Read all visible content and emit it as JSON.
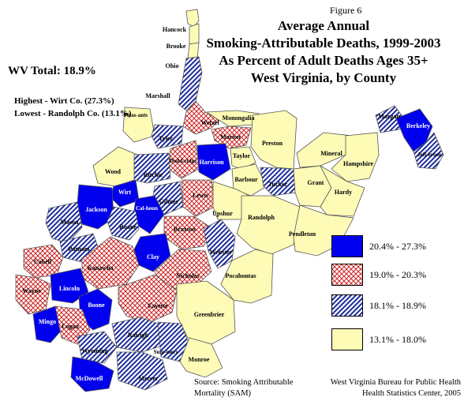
{
  "figure_label": "Figure 6",
  "title_lines": [
    "Average Annual",
    "Smoking-Attributable Deaths, 1999-2003",
    "As Percent of Adult Deaths Ages 35+",
    "West Virginia, by County"
  ],
  "wv_total": "WV Total:  18.9%",
  "highest": "Highest - Wirt Co. (27.3%)",
  "lowest": "Lowest - Randolph Co. (13.1%)",
  "source_lines": [
    "Source:  Smoking Attributable",
    "Mortality (SAM)"
  ],
  "bureau_lines": [
    "West Virginia Bureau for Public Health",
    "Health Statistics Center, 2005"
  ],
  "colors": {
    "high": "#0000ee",
    "mid_high": "#cc2222",
    "mid_low": "#1a2a9a",
    "low": "#fdfbb6",
    "border": "#555555"
  },
  "legend": [
    {
      "label": "20.4% - 27.3%",
      "class": "high"
    },
    {
      "label": "19.0% - 20.3%",
      "class": "mid_high"
    },
    {
      "label": "18.1% - 18.9%",
      "class": "mid_low"
    },
    {
      "label": "13.1% - 18.0%",
      "class": "low"
    }
  ],
  "counties": [
    {
      "name": "Hancock",
      "class": "low"
    },
    {
      "name": "Brooke",
      "class": "low"
    },
    {
      "name": "Ohio",
      "class": "low"
    },
    {
      "name": "Marshall",
      "class": "mid_low"
    },
    {
      "name": "Wetzel",
      "class": "mid_high"
    },
    {
      "name": "Monongalia",
      "class": "low"
    },
    {
      "name": "Marion",
      "class": "mid_high"
    },
    {
      "name": "Preston",
      "class": "low"
    },
    {
      "name": "Morgan",
      "class": "mid_low"
    },
    {
      "name": "Berkeley",
      "class": "high"
    },
    {
      "name": "Jeff-erson",
      "class": "mid_low"
    },
    {
      "name": "Pleas-ants",
      "class": "low"
    },
    {
      "name": "Tyler",
      "class": "mid_low"
    },
    {
      "name": "Dodd-ridge",
      "class": "mid_high"
    },
    {
      "name": "Harrison",
      "class": "high"
    },
    {
      "name": "Taylor",
      "class": "low"
    },
    {
      "name": "Barbour",
      "class": "low"
    },
    {
      "name": "Tucker",
      "class": "mid_low"
    },
    {
      "name": "Mineral",
      "class": "low"
    },
    {
      "name": "Hampshire",
      "class": "low"
    },
    {
      "name": "Grant",
      "class": "low"
    },
    {
      "name": "Hardy",
      "class": "low"
    },
    {
      "name": "Wood",
      "class": "low"
    },
    {
      "name": "Ritchie",
      "class": "mid_low"
    },
    {
      "name": "Wirt",
      "class": "high"
    },
    {
      "name": "Gilmer",
      "class": "mid_low"
    },
    {
      "name": "Lewis",
      "class": "mid_high"
    },
    {
      "name": "Upshur",
      "class": "low"
    },
    {
      "name": "Randolph",
      "class": "low"
    },
    {
      "name": "Pendleton",
      "class": "low"
    },
    {
      "name": "Jackson",
      "class": "high"
    },
    {
      "name": "Cal-houn",
      "class": "high"
    },
    {
      "name": "Mason",
      "class": "mid_low"
    },
    {
      "name": "Roane",
      "class": "mid_low"
    },
    {
      "name": "Braxton",
      "class": "mid_high"
    },
    {
      "name": "Webster",
      "class": "mid_low"
    },
    {
      "name": "Putnam",
      "class": "mid_low"
    },
    {
      "name": "Clay",
      "class": "high"
    },
    {
      "name": "Cabell",
      "class": "mid_high"
    },
    {
      "name": "Kanawha",
      "class": "mid_high"
    },
    {
      "name": "Nicholas",
      "class": "mid_high"
    },
    {
      "name": "Pocahontas",
      "class": "low"
    },
    {
      "name": "Wayne",
      "class": "mid_high"
    },
    {
      "name": "Lincoln",
      "class": "high"
    },
    {
      "name": "Boone",
      "class": "high"
    },
    {
      "name": "Fayette",
      "class": "mid_high"
    },
    {
      "name": "Greenbrier",
      "class": "low"
    },
    {
      "name": "Mingo",
      "class": "high"
    },
    {
      "name": "Logan",
      "class": "mid_high"
    },
    {
      "name": "Raleigh",
      "class": "mid_low"
    },
    {
      "name": "Wyoming",
      "class": "mid_low"
    },
    {
      "name": "Sum-mers",
      "class": "mid_low"
    },
    {
      "name": "Monroe",
      "class": "low"
    },
    {
      "name": "McDowell",
      "class": "high"
    },
    {
      "name": "Mercer",
      "class": "mid_low"
    }
  ]
}
